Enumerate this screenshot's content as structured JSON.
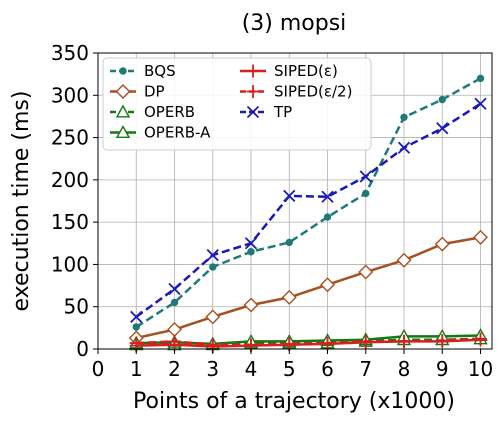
{
  "chart_data": {
    "type": "line",
    "title": "(3) mopsi",
    "xlabel": "Points of a trajectory (x1000)",
    "ylabel": "execution time (ms)",
    "xlim": [
      0,
      10.3
    ],
    "ylim": [
      0,
      350
    ],
    "xticks": [
      0,
      1,
      2,
      3,
      4,
      5,
      6,
      7,
      8,
      9,
      10
    ],
    "yticks": [
      0,
      50,
      100,
      150,
      200,
      250,
      300,
      350
    ],
    "grid": true,
    "legend_position": "top-left",
    "x": [
      1,
      2,
      3,
      4,
      5,
      6,
      7,
      8,
      9,
      10
    ],
    "series": [
      {
        "name": "BQS",
        "color": "#1f7a7a",
        "dash": "dashed",
        "marker": "dot",
        "values": [
          26,
          55,
          97,
          115,
          126,
          156,
          184,
          274,
          295,
          320
        ]
      },
      {
        "name": "DP",
        "color": "#a84f22",
        "dash": "solid",
        "marker": "diamond",
        "values": [
          13,
          23,
          38,
          52,
          61,
          76,
          91,
          105,
          124,
          132
        ]
      },
      {
        "name": "OPERB",
        "color": "#137a13",
        "dash": "dashed",
        "marker": "triangle",
        "values": [
          5,
          5,
          5,
          7,
          7,
          7,
          9,
          11,
          11,
          12
        ]
      },
      {
        "name": "OPERB-A",
        "color": "#137a13",
        "dash": "solid",
        "marker": "triangle",
        "values": [
          7,
          8,
          6,
          9,
          9,
          10,
          11,
          15,
          15,
          16
        ]
      },
      {
        "name": "SIPED(ε)",
        "color": "#d62020",
        "dash": "solid",
        "marker": "plus",
        "values": [
          4,
          5,
          3,
          4,
          5,
          6,
          8,
          9,
          9,
          11
        ]
      },
      {
        "name": "SIPED(ε/2)",
        "color": "#d62020",
        "dash": "dashed",
        "marker": "plus",
        "values": [
          7,
          9,
          5,
          5,
          6,
          7,
          9,
          9,
          10,
          12
        ]
      },
      {
        "name": "TP",
        "color": "#1a1ab8",
        "dash": "dashed",
        "marker": "x",
        "values": [
          38,
          71,
          111,
          125,
          181,
          180,
          204,
          238,
          261,
          290
        ]
      }
    ]
  }
}
